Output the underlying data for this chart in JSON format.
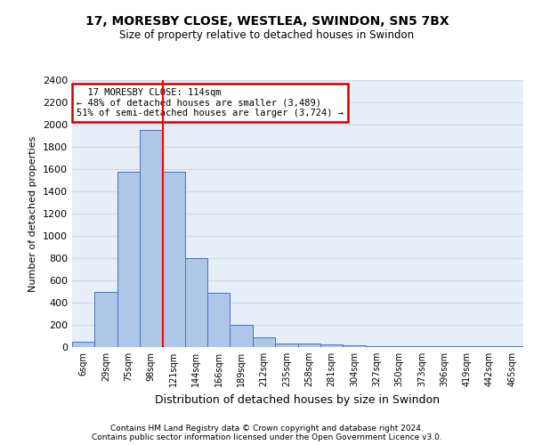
{
  "title1": "17, MORESBY CLOSE, WESTLEA, SWINDON, SN5 7BX",
  "title2": "Size of property relative to detached houses in Swindon",
  "xlabel": "Distribution of detached houses by size in Swindon",
  "ylabel": "Number of detached properties",
  "footnote1": "Contains HM Land Registry data © Crown copyright and database right 2024.",
  "footnote2": "Contains public sector information licensed under the Open Government Licence v3.0.",
  "bin_labels": [
    "6sqm",
    "29sqm",
    "75sqm",
    "98sqm",
    "121sqm",
    "144sqm",
    "166sqm",
    "189sqm",
    "212sqm",
    "235sqm",
    "258sqm",
    "281sqm",
    "304sqm",
    "327sqm",
    "350sqm",
    "373sqm",
    "396sqm",
    "419sqm",
    "442sqm",
    "465sqm"
  ],
  "bar_heights": [
    50,
    500,
    1580,
    1950,
    1580,
    800,
    490,
    200,
    90,
    35,
    30,
    25,
    20,
    5,
    5,
    5,
    5,
    5,
    5,
    5
  ],
  "bar_color": "#aec6e8",
  "bar_edge_color": "#4472c4",
  "vline_bin_index": 3.52,
  "ylim": [
    0,
    2400
  ],
  "yticks": [
    0,
    200,
    400,
    600,
    800,
    1000,
    1200,
    1400,
    1600,
    1800,
    2000,
    2200,
    2400
  ],
  "annotation_text": "  17 MORESBY CLOSE: 114sqm\n← 48% of detached houses are smaller (3,489)\n51% of semi-detached houses are larger (3,724) →",
  "annotation_box_color": "#ffffff",
  "annotation_box_edge": "#cc0000",
  "bg_color": "#ffffff",
  "grid_color": "#d0d8e8",
  "ax_bg_color": "#e8eef8",
  "title1_fontsize": 10,
  "title2_fontsize": 8.5,
  "ylabel_fontsize": 8,
  "xlabel_fontsize": 9,
  "footnote_fontsize": 6.5,
  "ytick_fontsize": 8,
  "xtick_fontsize": 7
}
